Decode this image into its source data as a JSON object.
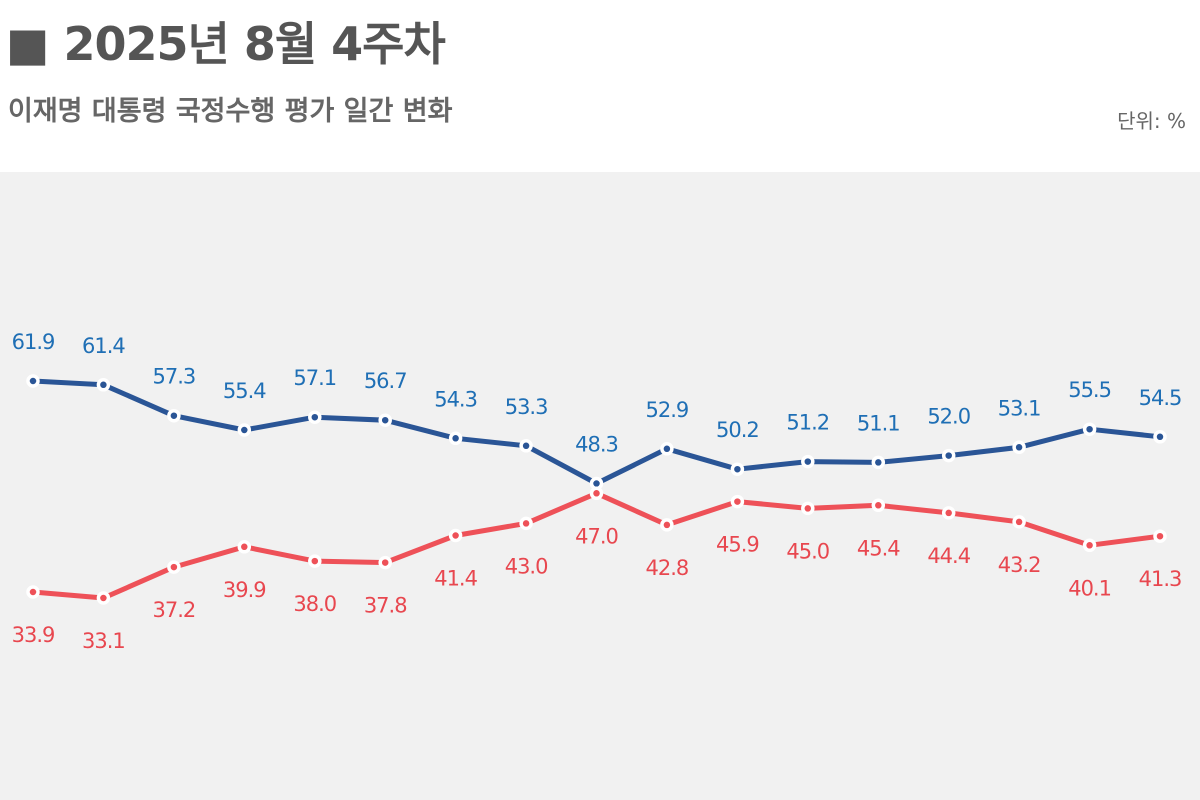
{
  "header": {
    "title": "■ 2025년 8월 4주차",
    "subtitle": "이재명 대통령 국정수행 평가 일간 변화",
    "unit": "단위: %"
  },
  "colors": {
    "series_1": "#2a5596",
    "series_1_label": "#1f6fb5",
    "series_2": "#ee5158",
    "series_2_label": "#e8474f",
    "background": "#f1f1f1",
    "title": "#555555"
  },
  "chart_data": {
    "type": "line",
    "title": "이재명 대통령 국정수행 평가 일간 변화",
    "unit": "%",
    "x": [
      1,
      2,
      3,
      4,
      5,
      6,
      7,
      8,
      9,
      10,
      11,
      12,
      13,
      14,
      15,
      16,
      17
    ],
    "ylim": [
      20,
      80
    ],
    "grid": false,
    "legend": "none",
    "series": [
      {
        "values": [
          61.9,
          61.4,
          57.3,
          55.4,
          57.1,
          56.7,
          54.3,
          53.3,
          48.3,
          52.9,
          50.2,
          51.2,
          51.1,
          52.0,
          53.1,
          55.5,
          54.5
        ],
        "labels": [
          "61.9",
          "61.4",
          "57.3",
          "55.4",
          "57.1",
          "56.7",
          "54.3",
          "53.3",
          "48.3",
          "52.9",
          "50.2",
          "51.2",
          "51.1",
          "52.0",
          "53.1",
          "55.5",
          "54.5"
        ]
      },
      {
        "values": [
          33.9,
          33.1,
          37.2,
          39.9,
          38.0,
          37.8,
          41.4,
          43.0,
          47.0,
          42.8,
          45.9,
          45.0,
          45.4,
          44.4,
          43.2,
          40.1,
          41.3
        ],
        "labels": [
          "33.9",
          "33.1",
          "37.2",
          "39.9",
          "38.0",
          "37.8",
          "41.4",
          "43.0",
          "47.0",
          "42.8",
          "45.9",
          "45.0",
          "45.4",
          "44.4",
          "43.2",
          "40.1",
          "41.3"
        ]
      }
    ]
  }
}
